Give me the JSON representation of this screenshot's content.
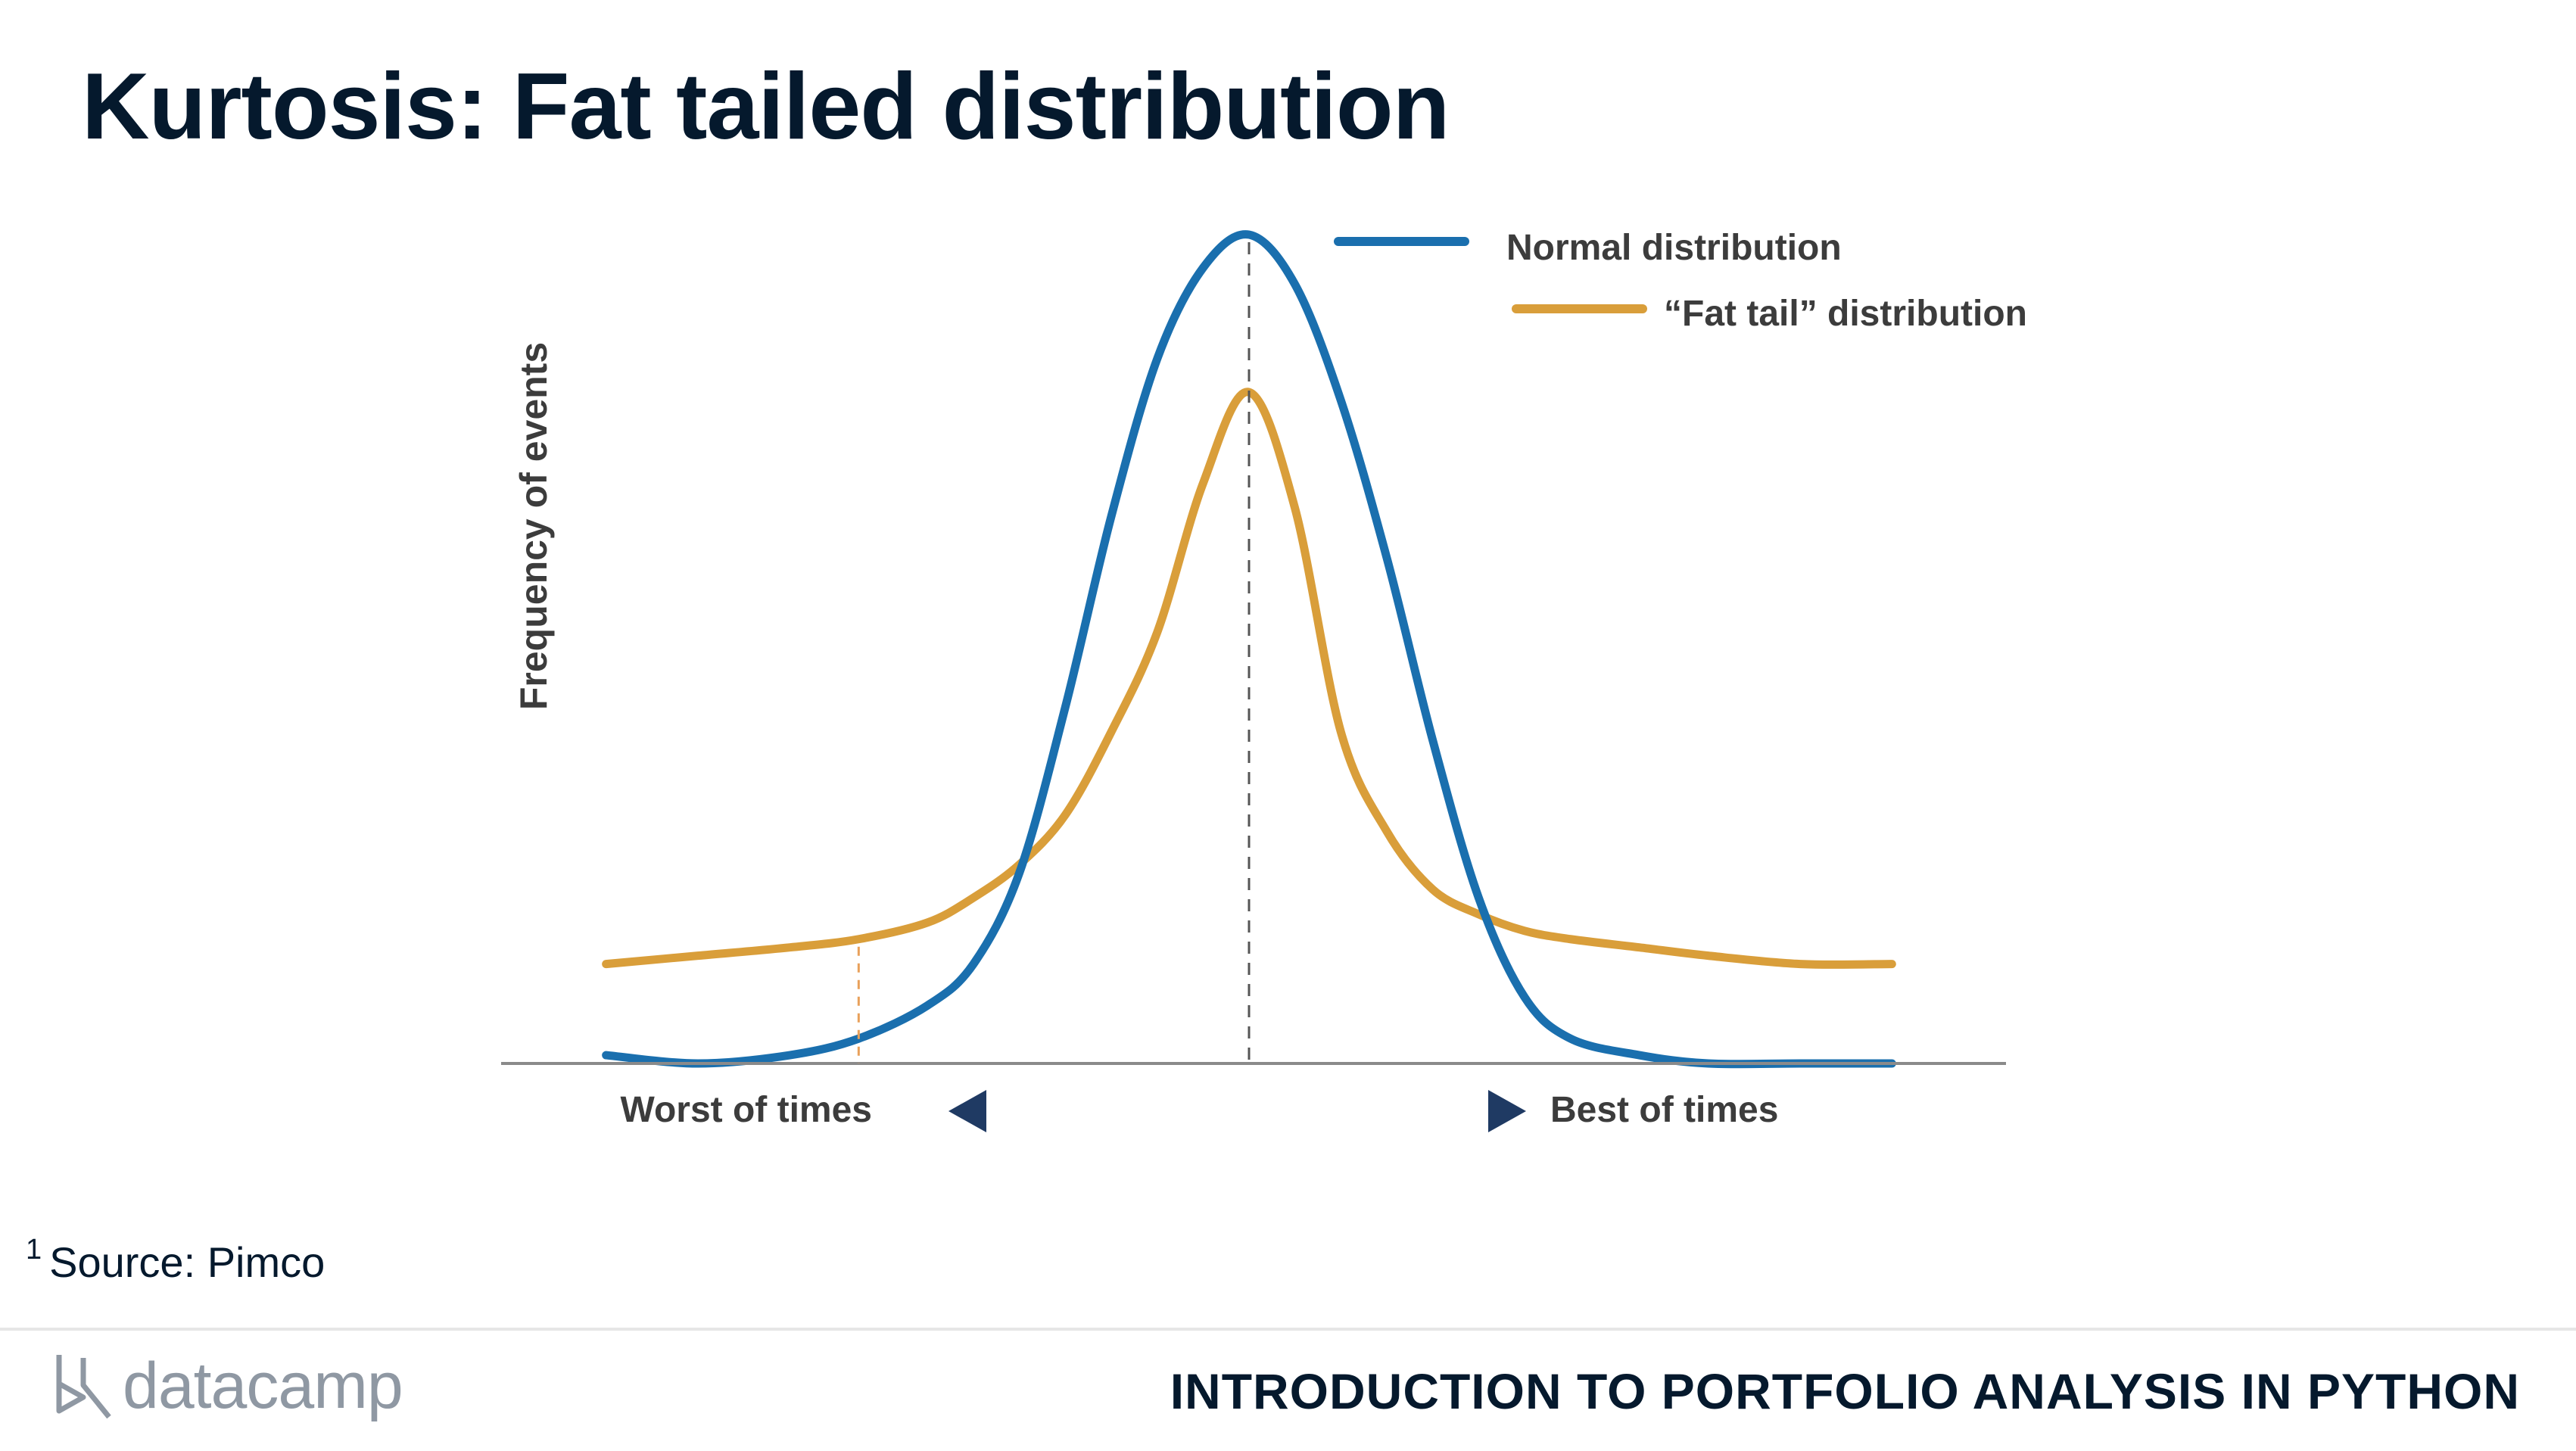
{
  "slide": {
    "title": "Kurtosis: Fat tailed distribution",
    "footnote_marker": "1",
    "footnote_text": "Source: Pimco",
    "course_title": "INTRODUCTION TO PORTFOLIO ANALYSIS IN PYTHON",
    "logo_text": "datacamp"
  },
  "chart_data": {
    "type": "line",
    "title": "",
    "xlabel": "",
    "ylabel": "Frequency of events",
    "x_annotations": {
      "left": "Worst of times",
      "right": "Best of times"
    },
    "xlim": [
      -3,
      3
    ],
    "ylim": [
      0,
      1
    ],
    "grid": false,
    "legend_position": "top-right",
    "mean_line": 0,
    "left_marker_x": -1.7,
    "series": [
      {
        "name": "Normal distribution",
        "color": "#1a6fae",
        "x": [
          -2.8,
          -2.4,
          -2.0,
          -1.7,
          -1.4,
          -1.2,
          -1.0,
          -0.8,
          -0.6,
          -0.4,
          -0.2,
          0.0,
          0.2,
          0.4,
          0.6,
          0.8,
          1.0,
          1.2,
          1.4,
          1.7,
          2.0,
          2.4,
          2.8
        ],
        "y": [
          0.01,
          0.0,
          0.01,
          0.03,
          0.07,
          0.12,
          0.23,
          0.43,
          0.66,
          0.85,
          0.96,
          1.0,
          0.94,
          0.8,
          0.61,
          0.39,
          0.2,
          0.08,
          0.03,
          0.01,
          0.0,
          0.0,
          0.0
        ]
      },
      {
        "name": "“Fat tail” distribution",
        "color": "#d99e3a",
        "x": [
          -2.8,
          -2.4,
          -2.0,
          -1.7,
          -1.4,
          -1.2,
          -1.0,
          -0.8,
          -0.6,
          -0.4,
          -0.2,
          0.0,
          0.2,
          0.4,
          0.6,
          0.8,
          1.0,
          1.2,
          1.4,
          1.7,
          2.0,
          2.4,
          2.8
        ],
        "y": [
          0.12,
          0.13,
          0.14,
          0.15,
          0.17,
          0.2,
          0.24,
          0.3,
          0.4,
          0.52,
          0.7,
          0.81,
          0.67,
          0.4,
          0.28,
          0.21,
          0.18,
          0.16,
          0.15,
          0.14,
          0.13,
          0.12,
          0.12
        ]
      }
    ]
  }
}
